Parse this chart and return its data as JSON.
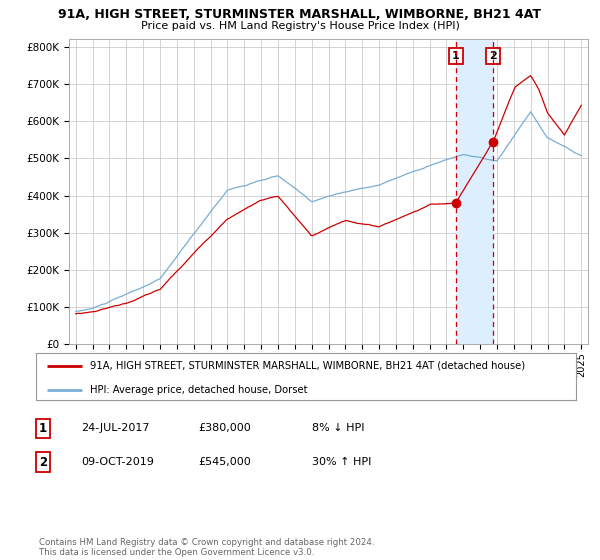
{
  "title1": "91A, HIGH STREET, STURMINSTER MARSHALL, WIMBORNE, BH21 4AT",
  "title2": "Price paid vs. HM Land Registry's House Price Index (HPI)",
  "legend_label_red": "91A, HIGH STREET, STURMINSTER MARSHALL, WIMBORNE, BH21 4AT (detached house)",
  "legend_label_blue": "HPI: Average price, detached house, Dorset",
  "purchase1_date": "24-JUL-2017",
  "purchase1_price": 380000,
  "purchase1_pct": "8% ↓ HPI",
  "purchase1_label": "1",
  "purchase2_date": "09-OCT-2019",
  "purchase2_price": 545000,
  "purchase2_pct": "30% ↑ HPI",
  "purchase2_label": "2",
  "copyright": "Contains HM Land Registry data © Crown copyright and database right 2024.\nThis data is licensed under the Open Government Licence v3.0.",
  "ylim": [
    0,
    820000
  ],
  "yticks": [
    0,
    100000,
    200000,
    300000,
    400000,
    500000,
    600000,
    700000,
    800000
  ],
  "ytick_labels": [
    "£0",
    "£100K",
    "£200K",
    "£300K",
    "£400K",
    "£500K",
    "£600K",
    "£700K",
    "£800K"
  ],
  "color_red": "#cc0000",
  "color_blue": "#7aadd4",
  "color_highlight": "#ddeeff",
  "purchase1_year": 2017.56,
  "purchase2_year": 2019.77,
  "background_color": "#ffffff",
  "grid_color": "#cccccc",
  "title1_fontsize": 9.0,
  "title2_fontsize": 8.0
}
